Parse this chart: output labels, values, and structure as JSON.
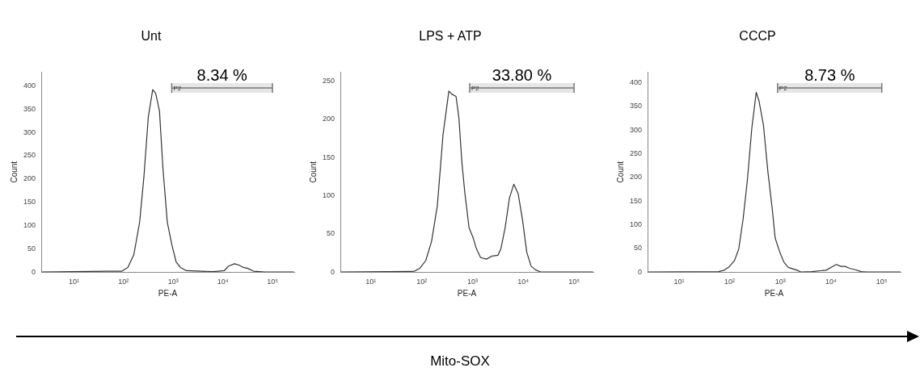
{
  "chart_data": [
    {
      "type": "line",
      "title": "Unt",
      "xlabel": "PE-A",
      "ylabel": "Count",
      "log": "x",
      "color": "#333333",
      "x": [
        2.25,
        47,
        93,
        122,
        161,
        211,
        258,
        316,
        387,
        444,
        530,
        622,
        762,
        935,
        1145,
        1403,
        1841,
        3620,
        6220,
        8160,
        10700,
        13100,
        17200,
        21100,
        25800,
        31600,
        41500,
        71300,
        270000
      ],
      "values": [
        0,
        2,
        2,
        10,
        37,
        107,
        206,
        334,
        392,
        384,
        346,
        223,
        107,
        60,
        22,
        10,
        3,
        2,
        1,
        2,
        3,
        13,
        18,
        15,
        10,
        8,
        2,
        0,
        0
      ],
      "xlim": [
        2.2,
        275000
      ],
      "ylim": [
        0,
        430
      ],
      "xticks": [
        {
          "value": 10,
          "label": "10¹"
        },
        {
          "value": 100,
          "label": "10²"
        },
        {
          "value": 1000,
          "label": "10³"
        },
        {
          "value": 10000,
          "label": "10⁴"
        },
        {
          "value": 100000,
          "label": "10⁵"
        }
      ],
      "yticks": [
        0,
        50,
        100,
        150,
        200,
        250,
        300,
        350,
        400
      ],
      "bands": [
        {
          "axis": "x",
          "from": 935,
          "to": 100000,
          "label": "P2",
          "color": "#e6e6e6"
        }
      ],
      "annotations": [
        "8.34 %",
        "Mito-SOX"
      ]
    },
    {
      "type": "line",
      "title": "LPS + ATP",
      "xlabel": "PE-A",
      "ylabel": "Count",
      "log": "x",
      "color": "#333333",
      "x": [
        2.53,
        71,
        92,
        120,
        156,
        203,
        263,
        342,
        390,
        474,
        541,
        617,
        703,
        855,
        1040,
        1186,
        1443,
        1875,
        2433,
        3162,
        3604,
        4385,
        5335,
        6500,
        7900,
        9620,
        11700,
        14200,
        17300,
        22500,
        237000
      ],
      "values": [
        0,
        1,
        5,
        15,
        40,
        87,
        180,
        237,
        233,
        230,
        201,
        144,
        105,
        58,
        44,
        31,
        19,
        17,
        21,
        22,
        30,
        58,
        97,
        115,
        103,
        69,
        26,
        8,
        3,
        0,
        0
      ],
      "xlim": [
        2.5,
        240000
      ],
      "ylim": [
        0,
        262
      ],
      "xticks": [
        {
          "value": 10,
          "label": "10¹"
        },
        {
          "value": 100,
          "label": "10²"
        },
        {
          "value": 1000,
          "label": "10³"
        },
        {
          "value": 10000,
          "label": "10⁴"
        },
        {
          "value": 100000,
          "label": "10⁵"
        }
      ],
      "yticks": [
        0,
        50,
        100,
        150,
        200,
        250
      ],
      "bands": [
        {
          "axis": "x",
          "from": 880,
          "to": 100000,
          "label": "P2",
          "color": "#e6e6e6"
        }
      ],
      "annotations": [
        "33.80 %"
      ]
    },
    {
      "type": "line",
      "title": "CCCP",
      "xlabel": "PE-A",
      "ylabel": "Count",
      "log": "x",
      "color": "#333333",
      "x": [
        2.43,
        60,
        78,
        95,
        124,
        151,
        184,
        224,
        273,
        334,
        380,
        464,
        566,
        690,
        788,
        961,
        1172,
        1429,
        2128,
        2594,
        4120,
        7980,
        10400,
        12700,
        15500,
        18900,
        23000,
        30000,
        39100,
        50900,
        233000
      ],
      "values": [
        0,
        1,
        4,
        10,
        24,
        49,
        112,
        196,
        304,
        380,
        361,
        310,
        213,
        134,
        72,
        44,
        21,
        10,
        4,
        0,
        1,
        4,
        11,
        16,
        12,
        12,
        8,
        5,
        1,
        0,
        0
      ],
      "xlim": [
        2.4,
        235000
      ],
      "ylim": [
        0,
        423
      ],
      "xticks": [
        {
          "value": 10,
          "label": "10¹"
        },
        {
          "value": 100,
          "label": "10²"
        },
        {
          "value": 1000,
          "label": "10³"
        },
        {
          "value": 10000,
          "label": "10⁴"
        },
        {
          "value": 100000,
          "label": "10⁵"
        }
      ],
      "yticks": [
        0,
        50,
        100,
        150,
        200,
        250,
        300,
        350,
        400
      ],
      "bands": [
        {
          "axis": "x",
          "from": 880,
          "to": 100000,
          "label": "P2",
          "color": "#e6e6e6"
        }
      ],
      "annotations": [
        "8.73 %"
      ]
    }
  ]
}
